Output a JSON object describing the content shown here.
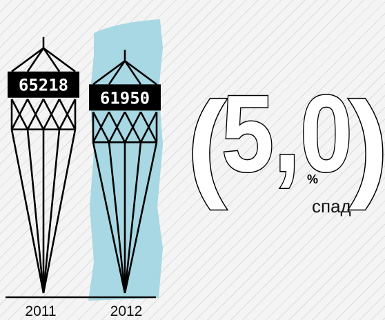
{
  "chart_data": {
    "type": "bar",
    "categories": [
      "2011",
      "2012"
    ],
    "values": [
      65218,
      61950
    ],
    "value_labels": [
      "65218",
      "61950"
    ],
    "highlight_category": "2012",
    "change": {
      "open_paren": "(",
      "value": "5,0",
      "close_paren": ")",
      "unit": "%",
      "label": "спад"
    },
    "colors": {
      "highlight": "#a7d8e3",
      "lines": "#000000",
      "label_box": "#000000",
      "label_text": "#ffffff"
    }
  }
}
